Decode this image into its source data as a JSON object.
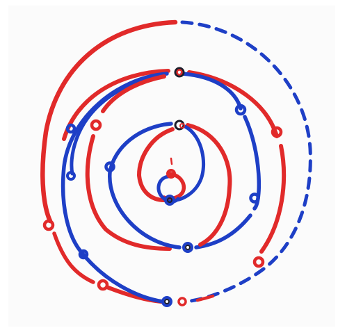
{
  "colors": {
    "background": "#ffffff",
    "paper": "#fbfbfb",
    "red_marker": "#e12a2a",
    "blue_marker": "#1e3fc6",
    "ink_dark": "#1d1d2a"
  }
}
